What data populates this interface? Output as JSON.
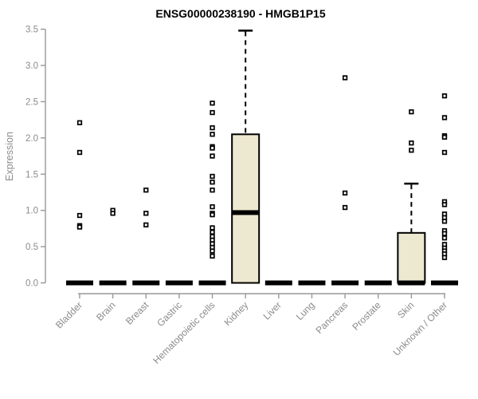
{
  "chart_data": {
    "type": "boxplot",
    "title": "ENSG00000238190 - HMGB1P15",
    "xlabel": "",
    "ylabel": "Expression",
    "ylim": [
      0,
      3.5
    ],
    "ytick_labels": [
      "0.0",
      "0.5",
      "1.0",
      "1.5",
      "2.0",
      "2.5",
      "3.0",
      "3.5"
    ],
    "grid": "off",
    "legend": "none",
    "categories": [
      "Bladder",
      "Brain",
      "Breast",
      "Gastric",
      "Hematopoietic cells",
      "Kidney",
      "Liver",
      "Lung",
      "Pancreas",
      "Prostate",
      "Skin",
      "Unknown / Other"
    ],
    "series": [
      {
        "name": "Bladder",
        "median": 0,
        "q1": 0,
        "q3": 0,
        "whisker_low": 0,
        "whisker_high": 0,
        "outliers": [
          2.21,
          1.8,
          0.93,
          0.79,
          0.77
        ]
      },
      {
        "name": "Brain",
        "median": 0,
        "q1": 0,
        "q3": 0,
        "whisker_low": 0,
        "whisker_high": 0,
        "outliers": [
          1.0,
          0.96
        ]
      },
      {
        "name": "Breast",
        "median": 0,
        "q1": 0,
        "q3": 0,
        "whisker_low": 0,
        "whisker_high": 0,
        "outliers": [
          1.28,
          0.96,
          0.8
        ]
      },
      {
        "name": "Gastric",
        "median": 0,
        "q1": 0,
        "q3": 0,
        "whisker_low": 0,
        "whisker_high": 0,
        "outliers": []
      },
      {
        "name": "Hematopoietic cells",
        "median": 0,
        "q1": 0,
        "q3": 0,
        "whisker_low": 0,
        "whisker_high": 0,
        "outliers": [
          2.48,
          2.35,
          2.14,
          2.05,
          1.88,
          1.86,
          1.75,
          1.47,
          1.39,
          1.28,
          1.05,
          0.96,
          0.94,
          0.76,
          0.7,
          0.64,
          0.59,
          0.54,
          0.49,
          0.44,
          0.37
        ]
      },
      {
        "name": "Kidney",
        "median": 0.97,
        "q1": 0,
        "q3": 2.05,
        "whisker_low": 0,
        "whisker_high": 3.48,
        "outliers": []
      },
      {
        "name": "Liver",
        "median": 0,
        "q1": 0,
        "q3": 0,
        "whisker_low": 0,
        "whisker_high": 0,
        "outliers": []
      },
      {
        "name": "Lung",
        "median": 0,
        "q1": 0,
        "q3": 0,
        "whisker_low": 0,
        "whisker_high": 0,
        "outliers": []
      },
      {
        "name": "Pancreas",
        "median": 0,
        "q1": 0,
        "q3": 0,
        "whisker_low": 0,
        "whisker_high": 0,
        "outliers": [
          2.83,
          1.24,
          1.04
        ]
      },
      {
        "name": "Prostate",
        "median": 0,
        "q1": 0,
        "q3": 0,
        "whisker_low": 0,
        "whisker_high": 0,
        "outliers": []
      },
      {
        "name": "Skin",
        "median": 0,
        "q1": 0,
        "q3": 0.69,
        "whisker_low": 0,
        "whisker_high": 1.37,
        "outliers": [
          2.36,
          1.93,
          1.83
        ]
      },
      {
        "name": "Unknown / Other",
        "median": 0,
        "q1": 0,
        "q3": 0,
        "whisker_low": 0,
        "whisker_high": 0,
        "outliers": [
          2.58,
          2.28,
          2.03,
          2.01,
          1.8,
          1.12,
          1.08,
          0.95,
          0.9,
          0.85,
          0.72,
          0.68,
          0.62,
          0.53,
          0.48,
          0.44,
          0.4,
          0.35
        ]
      }
    ],
    "colors": {
      "box_fill": "#EDE8D0",
      "box_border": "#000000",
      "median": "#000000",
      "whisker": "#000000",
      "outlier_stroke": "#000000",
      "outlier_fill": "#ffffff",
      "axis_line": "#989898",
      "tick_text": "#8b8b8b",
      "title_text": "#000000",
      "background": "#ffffff"
    }
  }
}
